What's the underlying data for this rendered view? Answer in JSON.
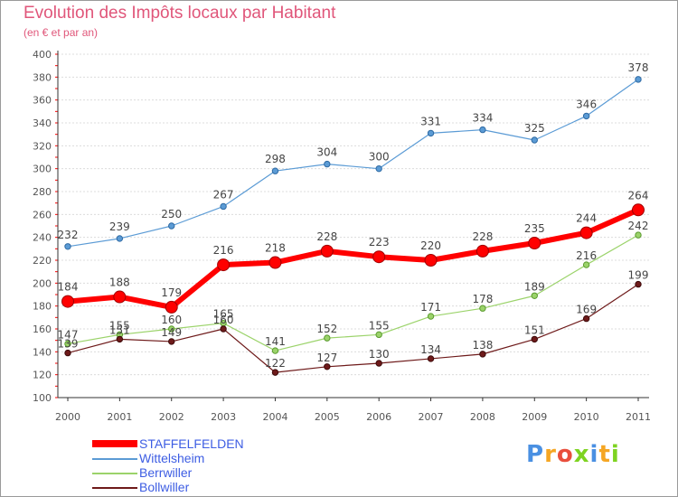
{
  "title": "Evolution des Impôts locaux par Habitant",
  "subtitle": "(en € et par an)",
  "logo_text": "Proxiti",
  "chart_data": {
    "type": "line",
    "title": "Evolution des Impôts locaux par Habitant",
    "subtitle": "(en € et par an)",
    "xlabel": "",
    "ylabel": "",
    "x": [
      "2000",
      "2001",
      "2002",
      "2003",
      "2004",
      "2005",
      "2006",
      "2007",
      "2008",
      "2009",
      "2010",
      "2011"
    ],
    "y_ticks": [
      "100",
      "120",
      "140",
      "160",
      "180",
      "200",
      "220",
      "240",
      "260",
      "280",
      "300",
      "320",
      "340",
      "360",
      "380",
      "400"
    ],
    "ylim": [
      100,
      400
    ],
    "grid": "horizontal",
    "legend_position": "bottom-left",
    "series": [
      {
        "name": "STAFFELFELDEN",
        "color": "#ff0000",
        "values": [
          184,
          188,
          179,
          216,
          218,
          228,
          223,
          220,
          228,
          235,
          244,
          264
        ]
      },
      {
        "name": "Wittelsheim",
        "color": "#5b9bd5",
        "values": [
          232,
          239,
          250,
          267,
          298,
          304,
          300,
          331,
          334,
          325,
          346,
          378
        ]
      },
      {
        "name": "Berrwiller",
        "color": "#9bd36a",
        "values": [
          147,
          155,
          160,
          165,
          141,
          152,
          155,
          171,
          178,
          189,
          216,
          242
        ]
      },
      {
        "name": "Bollwiller",
        "color": "#6e1a1a",
        "values": [
          139,
          151,
          149,
          160,
          122,
          127,
          130,
          134,
          138,
          151,
          169,
          199
        ]
      }
    ]
  }
}
